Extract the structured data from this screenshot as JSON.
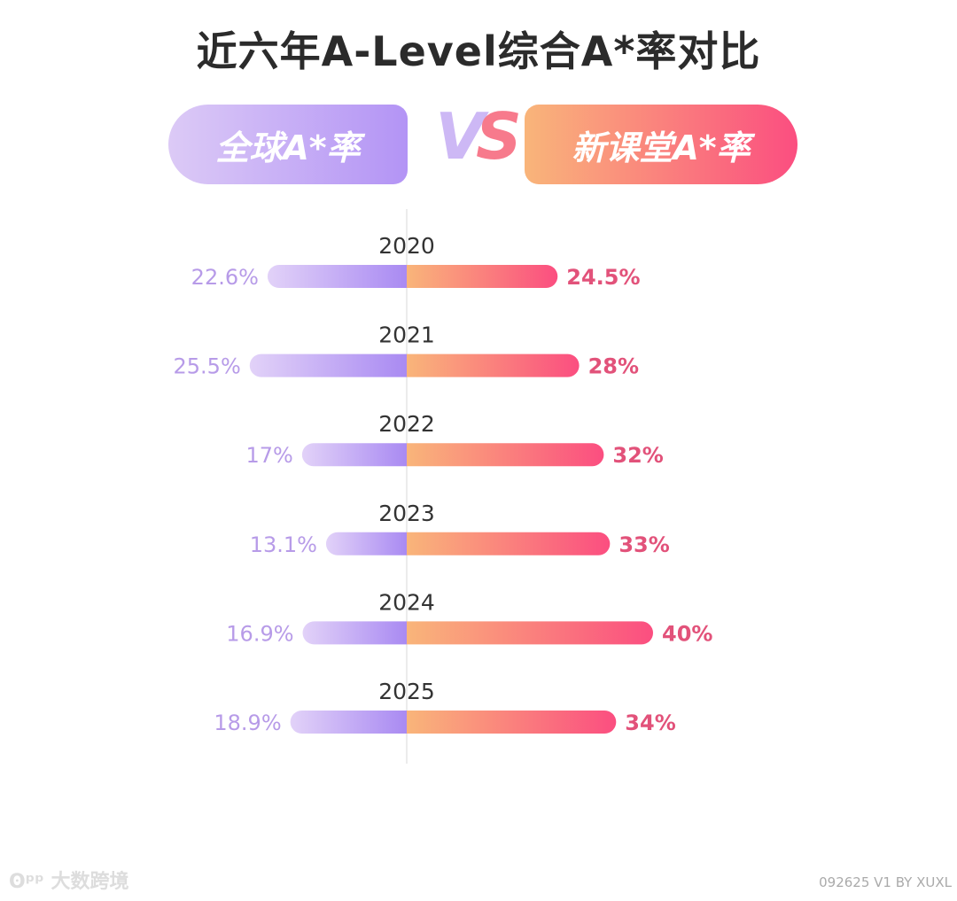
{
  "chart_data": {
    "type": "bar",
    "title": "近六年A-Level综合A*率对比",
    "orientation": "horizontal-butterfly",
    "unit": "%",
    "categories": [
      "2020",
      "2021",
      "2022",
      "2023",
      "2024",
      "2025"
    ],
    "series": [
      {
        "name": "全球A*率",
        "values": [
          22.6,
          25.5,
          17,
          13.1,
          16.9,
          18.9
        ],
        "labels": [
          "22.6%",
          "25.5%",
          "17%",
          "13.1%",
          "16.9%",
          "18.9%"
        ],
        "color_from": "#e2d2f8",
        "color_to": "#a98af2",
        "label_color": "#b79be8"
      },
      {
        "name": "新课堂A*率",
        "values": [
          24.5,
          28,
          32,
          33,
          40,
          34
        ],
        "labels": [
          "24.5%",
          "28%",
          "32%",
          "33%",
          "40%",
          "34%"
        ],
        "color_from": "#f9b57a",
        "color_to": "#fb4e80",
        "label_color": "#e2527a"
      }
    ],
    "vs_label": "VS",
    "grid": false
  },
  "footer": {
    "logo_text": "大数跨境",
    "version": "092625 V1 BY XUXL"
  }
}
